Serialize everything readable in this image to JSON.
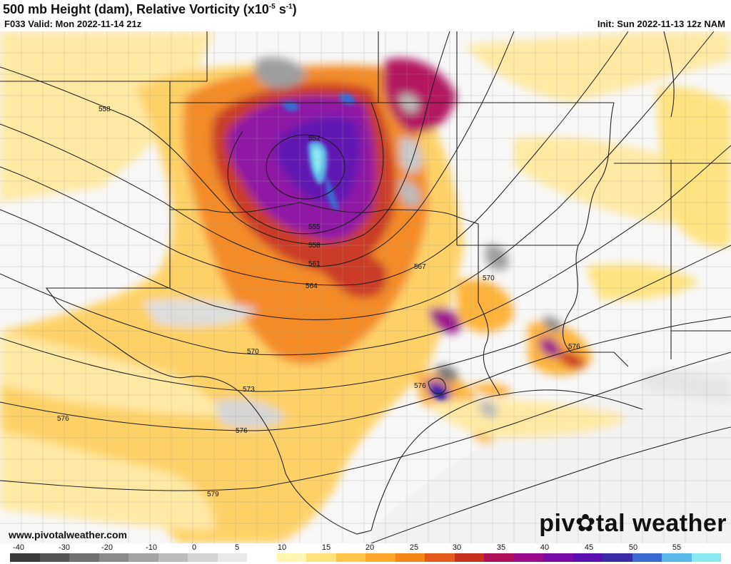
{
  "header": {
    "title_main": "500 mb Height (dam), Relative Vorticity (x10",
    "title_sup": "-5",
    "title_unit": " s",
    "title_sup2": "-1",
    "title_close": ")",
    "valid": "F033 Valid: Mon 2022-11-14 21z",
    "init": "Init: Sun 2022-11-13 12z NAM"
  },
  "footer": {
    "url": "www.pivotalweather.com",
    "brand_left": "piv",
    "brand_right": "tal weather"
  },
  "contours": [
    {
      "label": "552"
    },
    {
      "label": "555"
    },
    {
      "label": "558"
    },
    {
      "label": "558"
    },
    {
      "label": "561"
    },
    {
      "label": "564"
    },
    {
      "label": "567"
    },
    {
      "label": "570"
    },
    {
      "label": "570"
    },
    {
      "label": "573"
    },
    {
      "label": "576"
    },
    {
      "label": "576"
    },
    {
      "label": "576"
    },
    {
      "label": "576"
    },
    {
      "label": "579"
    }
  ],
  "colorbar": {
    "ticks": [
      "-40",
      "-30",
      "-20",
      "-10",
      "0",
      "5",
      "10",
      "15",
      "20",
      "25",
      "30",
      "35",
      "40",
      "45",
      "50",
      "55"
    ],
    "colors": [
      "#3a3a3a",
      "#555555",
      "#707070",
      "#8a8a8a",
      "#a3a3a3",
      "#bcbcbc",
      "#d4d4d4",
      "#e8e8e8",
      "#ffffff",
      "#fff6b0",
      "#ffe27a",
      "#ffc54a",
      "#ffa72a",
      "#f4861a",
      "#e25a1c",
      "#c8301e",
      "#b0105a",
      "#9a0a8a",
      "#7a0aa8",
      "#5a10b0",
      "#3a2aa8",
      "#3a6ad0",
      "#5ab8e8",
      "#8ae8f0"
    ]
  },
  "colors": {
    "low_vort": "#ffe27a",
    "mid_vort": "#f4861a",
    "high_vort": "#9a0a8a",
    "max_vort": "#8ae8f0",
    "neg_vort": "#a3a3a3"
  }
}
